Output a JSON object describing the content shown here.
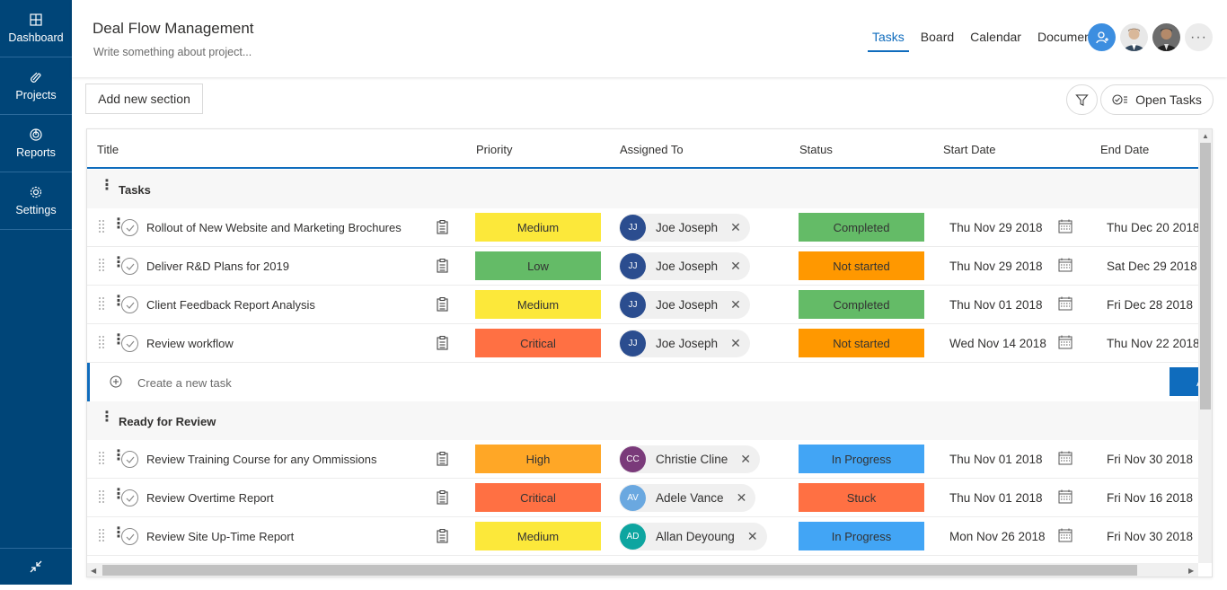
{
  "sidebar": {
    "items": [
      {
        "label": "Dashboard",
        "icon": "dashboard-icon"
      },
      {
        "label": "Projects",
        "icon": "projects-icon"
      },
      {
        "label": "Reports",
        "icon": "reports-icon"
      },
      {
        "label": "Settings",
        "icon": "gear-icon"
      }
    ],
    "collapse_icon": "collapse-icon"
  },
  "header": {
    "title": "Deal Flow Management",
    "description": "Write something about project...",
    "tabs": [
      "Tasks",
      "Board",
      "Calendar",
      "Documents"
    ],
    "active_tab": "Tasks",
    "more_label": "···"
  },
  "toolbar": {
    "add_section_label": "Add new section",
    "open_tasks_label": "Open Tasks"
  },
  "columns": {
    "title": "Title",
    "priority": "Priority",
    "assigned": "Assigned To",
    "status": "Status",
    "start": "Start Date",
    "end": "End Date"
  },
  "sections": [
    {
      "name": "Tasks",
      "tasks": [
        {
          "title": "Rollout of New Website and Marketing Brochures",
          "priority": "Medium",
          "initials": "JJ",
          "assignee": "Joe Joseph",
          "status": "Completed",
          "start": "Thu Nov 29 2018",
          "end": "Thu Dec 20 2018"
        },
        {
          "title": "Deliver R&D Plans for 2019",
          "priority": "Low",
          "initials": "JJ",
          "assignee": "Joe Joseph",
          "status": "Not started",
          "start": "Thu Nov 29 2018",
          "end": "Sat Dec 29 2018"
        },
        {
          "title": "Client Feedback Report Analysis",
          "priority": "Medium",
          "initials": "JJ",
          "assignee": "Joe Joseph",
          "status": "Completed",
          "start": "Thu Nov 01 2018",
          "end": "Fri Dec 28 2018"
        },
        {
          "title": "Review workflow",
          "priority": "Critical",
          "initials": "JJ",
          "assignee": "Joe Joseph",
          "status": "Not started",
          "start": "Wed Nov 14 2018",
          "end": "Thu Nov 22 2018"
        }
      ],
      "create_placeholder": "Create a new task",
      "add_label": "A"
    },
    {
      "name": "Ready for Review",
      "tasks": [
        {
          "title": "Review Training Course for any Ommissions",
          "priority": "High",
          "initials": "CC",
          "assignee": "Christie Cline",
          "status": "In Progress",
          "start": "Thu Nov 01 2018",
          "end": "Fri Nov 30 2018"
        },
        {
          "title": " Review Overtime Report",
          "priority": "Critical",
          "initials": "AV",
          "assignee": "Adele Vance",
          "status": "Stuck",
          "start": "Thu Nov 01 2018",
          "end": "Fri Nov 16 2018"
        },
        {
          "title": "Review Site Up-Time Report",
          "priority": "Medium",
          "initials": "AD",
          "assignee": "Allan Deyoung",
          "status": "In Progress",
          "start": "Mon Nov 26 2018",
          "end": "Fri Nov 30 2018"
        }
      ]
    }
  ],
  "colors": {
    "priority": {
      "Medium": "#fce83a",
      "Low": "#64bb67",
      "Critical": "#ff7043",
      "High": "#ffa726"
    },
    "status": {
      "Completed": "#64bb67",
      "Not started": "#ff9800",
      "In Progress": "#42a5f5",
      "Stuck": "#ff7043"
    },
    "avatar": {
      "JJ": "#2b4d8f",
      "CC": "#7a3a7a",
      "AV": "#6aa8e0",
      "AD": "#0ea5a0"
    }
  }
}
